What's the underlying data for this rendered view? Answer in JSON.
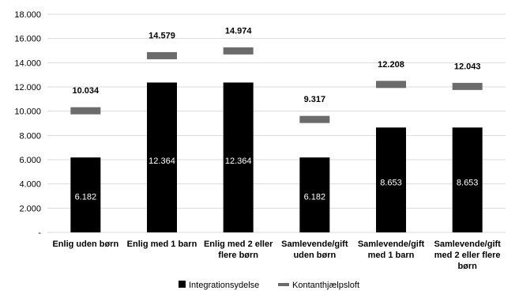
{
  "chart_data": {
    "type": "bar",
    "categories": [
      [
        "Enlig uden børn"
      ],
      [
        "Enlig med 1 barn"
      ],
      [
        "Enlig med 2 eller",
        "flere børn"
      ],
      [
        "Samlevende/gift",
        "uden børn"
      ],
      [
        "Samlevende/gift",
        "med 1 barn"
      ],
      [
        "Samlevende/gift",
        "med 2 eller flere",
        "børn"
      ]
    ],
    "series": [
      {
        "name": "Integrationsydelse",
        "mark": "bar",
        "color": "#000000",
        "values": [
          6182,
          12364,
          12364,
          6182,
          8653,
          8653
        ],
        "labels": [
          "6.182",
          "12.364",
          "12.364",
          "6.182",
          "8.653",
          "8.653"
        ]
      },
      {
        "name": "Kontanthjælpsloft",
        "mark": "dash",
        "color": "#6b6b6b",
        "values": [
          10034,
          14579,
          14974,
          9317,
          12208,
          12043
        ],
        "labels": [
          "10.034",
          "14.579",
          "14.974",
          "9.317",
          "12.208",
          "12.043"
        ]
      }
    ],
    "ylim": [
      0,
      18000
    ],
    "yticks": [
      0,
      2000,
      4000,
      6000,
      8000,
      10000,
      12000,
      14000,
      16000,
      18000
    ],
    "ytick_labels": [
      "-",
      "2.000",
      "4.000",
      "6.000",
      "8.000",
      "10.000",
      "12.000",
      "14.000",
      "16.000",
      "18.000"
    ],
    "grid": true,
    "legend_position": "bottom"
  }
}
